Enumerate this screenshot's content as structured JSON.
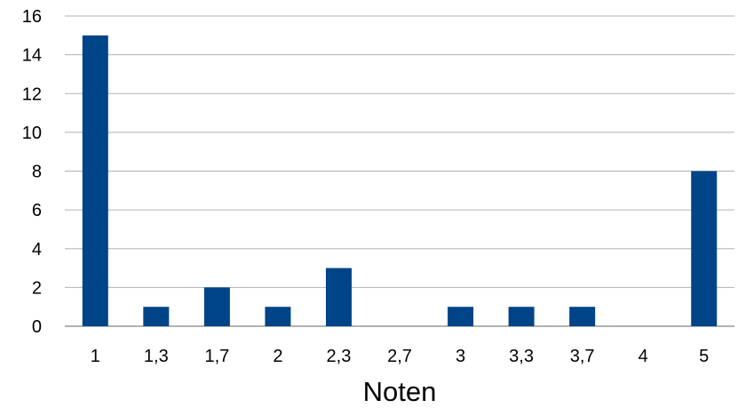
{
  "chart_data": {
    "type": "bar",
    "categories": [
      "1",
      "1,3",
      "1,7",
      "2",
      "2,3",
      "2,7",
      "3",
      "3,3",
      "3,7",
      "4",
      "5"
    ],
    "values": [
      15,
      1,
      2,
      1,
      3,
      0,
      1,
      1,
      1,
      0,
      8
    ],
    "xlabel": "Noten",
    "ylabel": "",
    "ylim": [
      0,
      16
    ],
    "yticks": [
      0,
      2,
      4,
      6,
      8,
      10,
      12,
      14,
      16
    ],
    "grid": true,
    "legend": "none",
    "colors": {
      "bar": "#004488",
      "grid": "#b3b3b3",
      "axis": "#999999"
    }
  }
}
